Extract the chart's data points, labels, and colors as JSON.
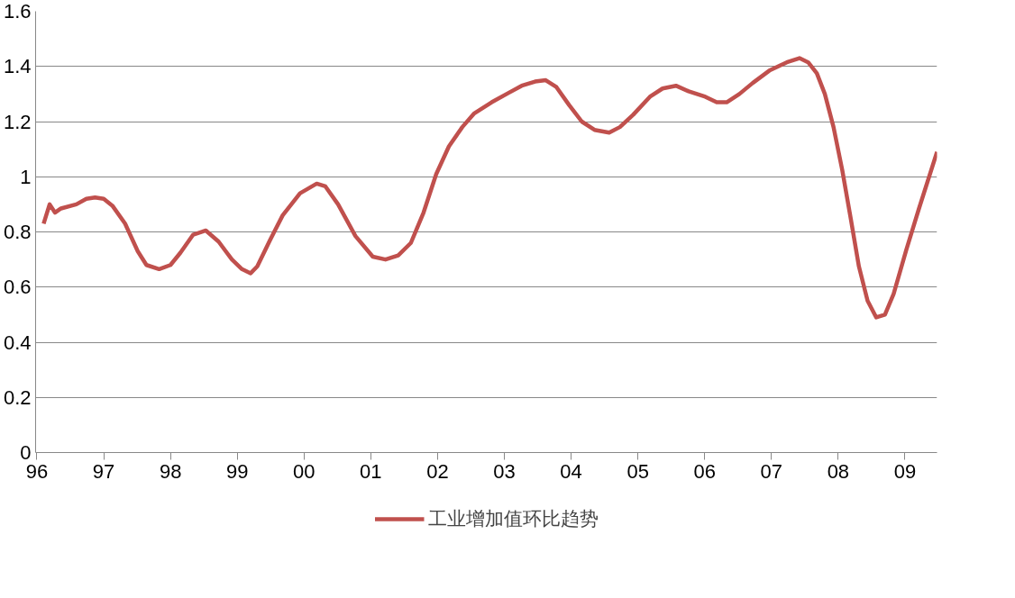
{
  "chart_data": {
    "type": "line",
    "x": [
      1996.1,
      1996.19,
      1996.27,
      1996.36,
      1996.59,
      1996.74,
      1996.87,
      1997.0,
      1997.13,
      1997.32,
      1997.51,
      1997.64,
      1997.83,
      1998.0,
      1998.15,
      1998.34,
      1998.53,
      1998.72,
      1998.92,
      1999.07,
      1999.2,
      1999.3,
      1999.49,
      1999.68,
      1999.94,
      2000.19,
      2000.32,
      2000.51,
      2000.77,
      2001.03,
      2001.22,
      2001.41,
      2001.6,
      2001.79,
      2001.98,
      2002.17,
      2002.37,
      2002.55,
      2002.81,
      2003.07,
      2003.26,
      2003.46,
      2003.62,
      2003.78,
      2003.97,
      2004.16,
      2004.35,
      2004.57,
      2004.73,
      2004.93,
      2005.18,
      2005.37,
      2005.57,
      2005.76,
      2006.01,
      2006.18,
      2006.33,
      2006.52,
      2006.72,
      2006.97,
      2007.23,
      2007.42,
      2007.55,
      2007.68,
      2007.8,
      2007.93,
      2008.06,
      2008.19,
      2008.31,
      2008.44,
      2008.57,
      2008.7,
      2008.83,
      2009.02,
      2009.21,
      2009.48
    ],
    "series": [
      {
        "name": "工业增加值环比趋势",
        "color": "#c0504d",
        "values": [
          0.83,
          0.9,
          0.87,
          0.885,
          0.9,
          0.92,
          0.925,
          0.92,
          0.895,
          0.83,
          0.73,
          0.68,
          0.665,
          0.68,
          0.725,
          0.79,
          0.805,
          0.765,
          0.7,
          0.665,
          0.65,
          0.675,
          0.77,
          0.86,
          0.94,
          0.975,
          0.965,
          0.9,
          0.785,
          0.71,
          0.7,
          0.715,
          0.76,
          0.87,
          1.01,
          1.11,
          1.18,
          1.23,
          1.27,
          1.305,
          1.33,
          1.345,
          1.35,
          1.325,
          1.26,
          1.2,
          1.17,
          1.16,
          1.18,
          1.225,
          1.29,
          1.32,
          1.33,
          1.31,
          1.29,
          1.27,
          1.27,
          1.3,
          1.34,
          1.385,
          1.415,
          1.43,
          1.415,
          1.375,
          1.3,
          1.18,
          1.025,
          0.845,
          0.675,
          0.55,
          0.49,
          0.5,
          0.575,
          0.735,
          0.885,
          1.09
        ]
      }
    ],
    "xlim": [
      1995.98,
      2009.48
    ],
    "xticks": [
      {
        "value": 1996,
        "label": "96"
      },
      {
        "value": 1997,
        "label": "97"
      },
      {
        "value": 1998,
        "label": "98"
      },
      {
        "value": 1999,
        "label": "99"
      },
      {
        "value": 2000,
        "label": "00"
      },
      {
        "value": 2001,
        "label": "01"
      },
      {
        "value": 2002,
        "label": "02"
      },
      {
        "value": 2003,
        "label": "03"
      },
      {
        "value": 2004,
        "label": "04"
      },
      {
        "value": 2005,
        "label": "05"
      },
      {
        "value": 2006,
        "label": "06"
      },
      {
        "value": 2007,
        "label": "07"
      },
      {
        "value": 2008,
        "label": "08"
      },
      {
        "value": 2009,
        "label": "09"
      }
    ],
    "ylim": [
      0,
      1.6
    ],
    "yticks": [
      0,
      {
        "value": 0.2,
        "label": "0.2"
      },
      {
        "value": 0.4,
        "label": "0.4"
      },
      {
        "value": 0.6,
        "label": "0.6"
      },
      {
        "value": 0.8,
        "label": "0.8"
      },
      1,
      {
        "value": 1.2,
        "label": "1.2"
      },
      {
        "value": 1.4,
        "label": "1.4"
      },
      {
        "value": 1.6,
        "label": "1.6"
      }
    ],
    "grid": "y",
    "legend": "bottom",
    "marker": "none",
    "line_style": "solid"
  }
}
